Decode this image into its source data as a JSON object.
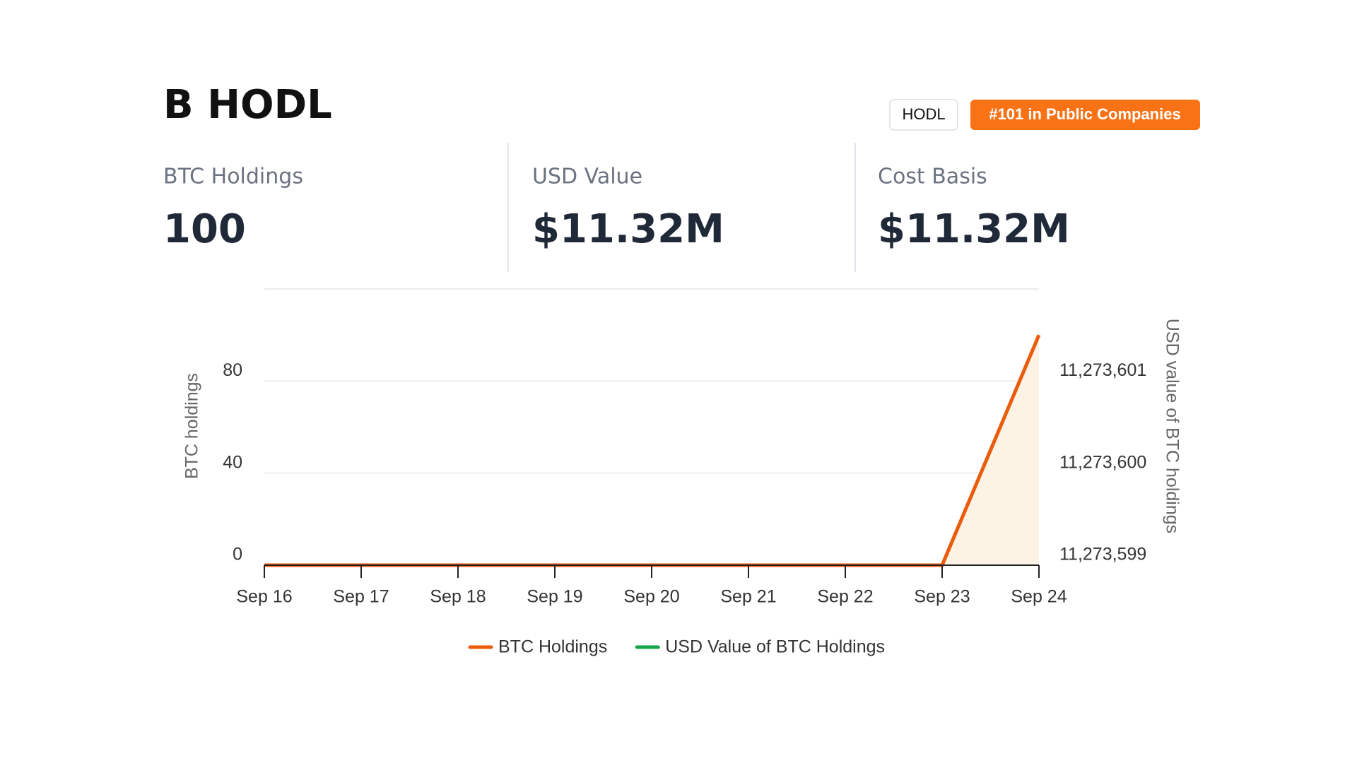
{
  "header": {
    "title": "B HODL",
    "badges": [
      "HODL",
      "#101 in Public Companies"
    ]
  },
  "stats": [
    {
      "label": "BTC Holdings",
      "value": "100"
    },
    {
      "label": "USD Value",
      "value": "$11.32M"
    },
    {
      "label": "Cost Basis",
      "value": "$11.32M"
    }
  ],
  "chart_data": {
    "type": "line",
    "categories": [
      "Sep 16",
      "Sep 17",
      "Sep 18",
      "Sep 19",
      "Sep 20",
      "Sep 21",
      "Sep 22",
      "Sep 23",
      "Sep 24"
    ],
    "ylabel": "BTC holdings",
    "y2label": "USD value of BTC holdings",
    "ylim": [
      0,
      120
    ],
    "yticks": [
      0,
      40,
      80
    ],
    "y2lim": [
      11273599,
      11273602
    ],
    "y2ticks": [
      {
        "value": 11273599,
        "label": "11,273,599"
      },
      {
        "value": 11273600,
        "label": "11,273,600"
      },
      {
        "value": 11273601,
        "label": "11,273,601"
      }
    ],
    "grid": true,
    "series": [
      {
        "name": "BTC Holdings",
        "color": "#ea5b0c",
        "fill": "#fdf3e4",
        "values": [
          0,
          0,
          0,
          0,
          0,
          0,
          0,
          0,
          100
        ]
      },
      {
        "name": "USD Value of BTC Holdings",
        "color": "#16a34a",
        "axis": "y2",
        "values": [
          null,
          null,
          null,
          null,
          null,
          null,
          null,
          null,
          null
        ]
      }
    ],
    "legend": "bottom"
  }
}
